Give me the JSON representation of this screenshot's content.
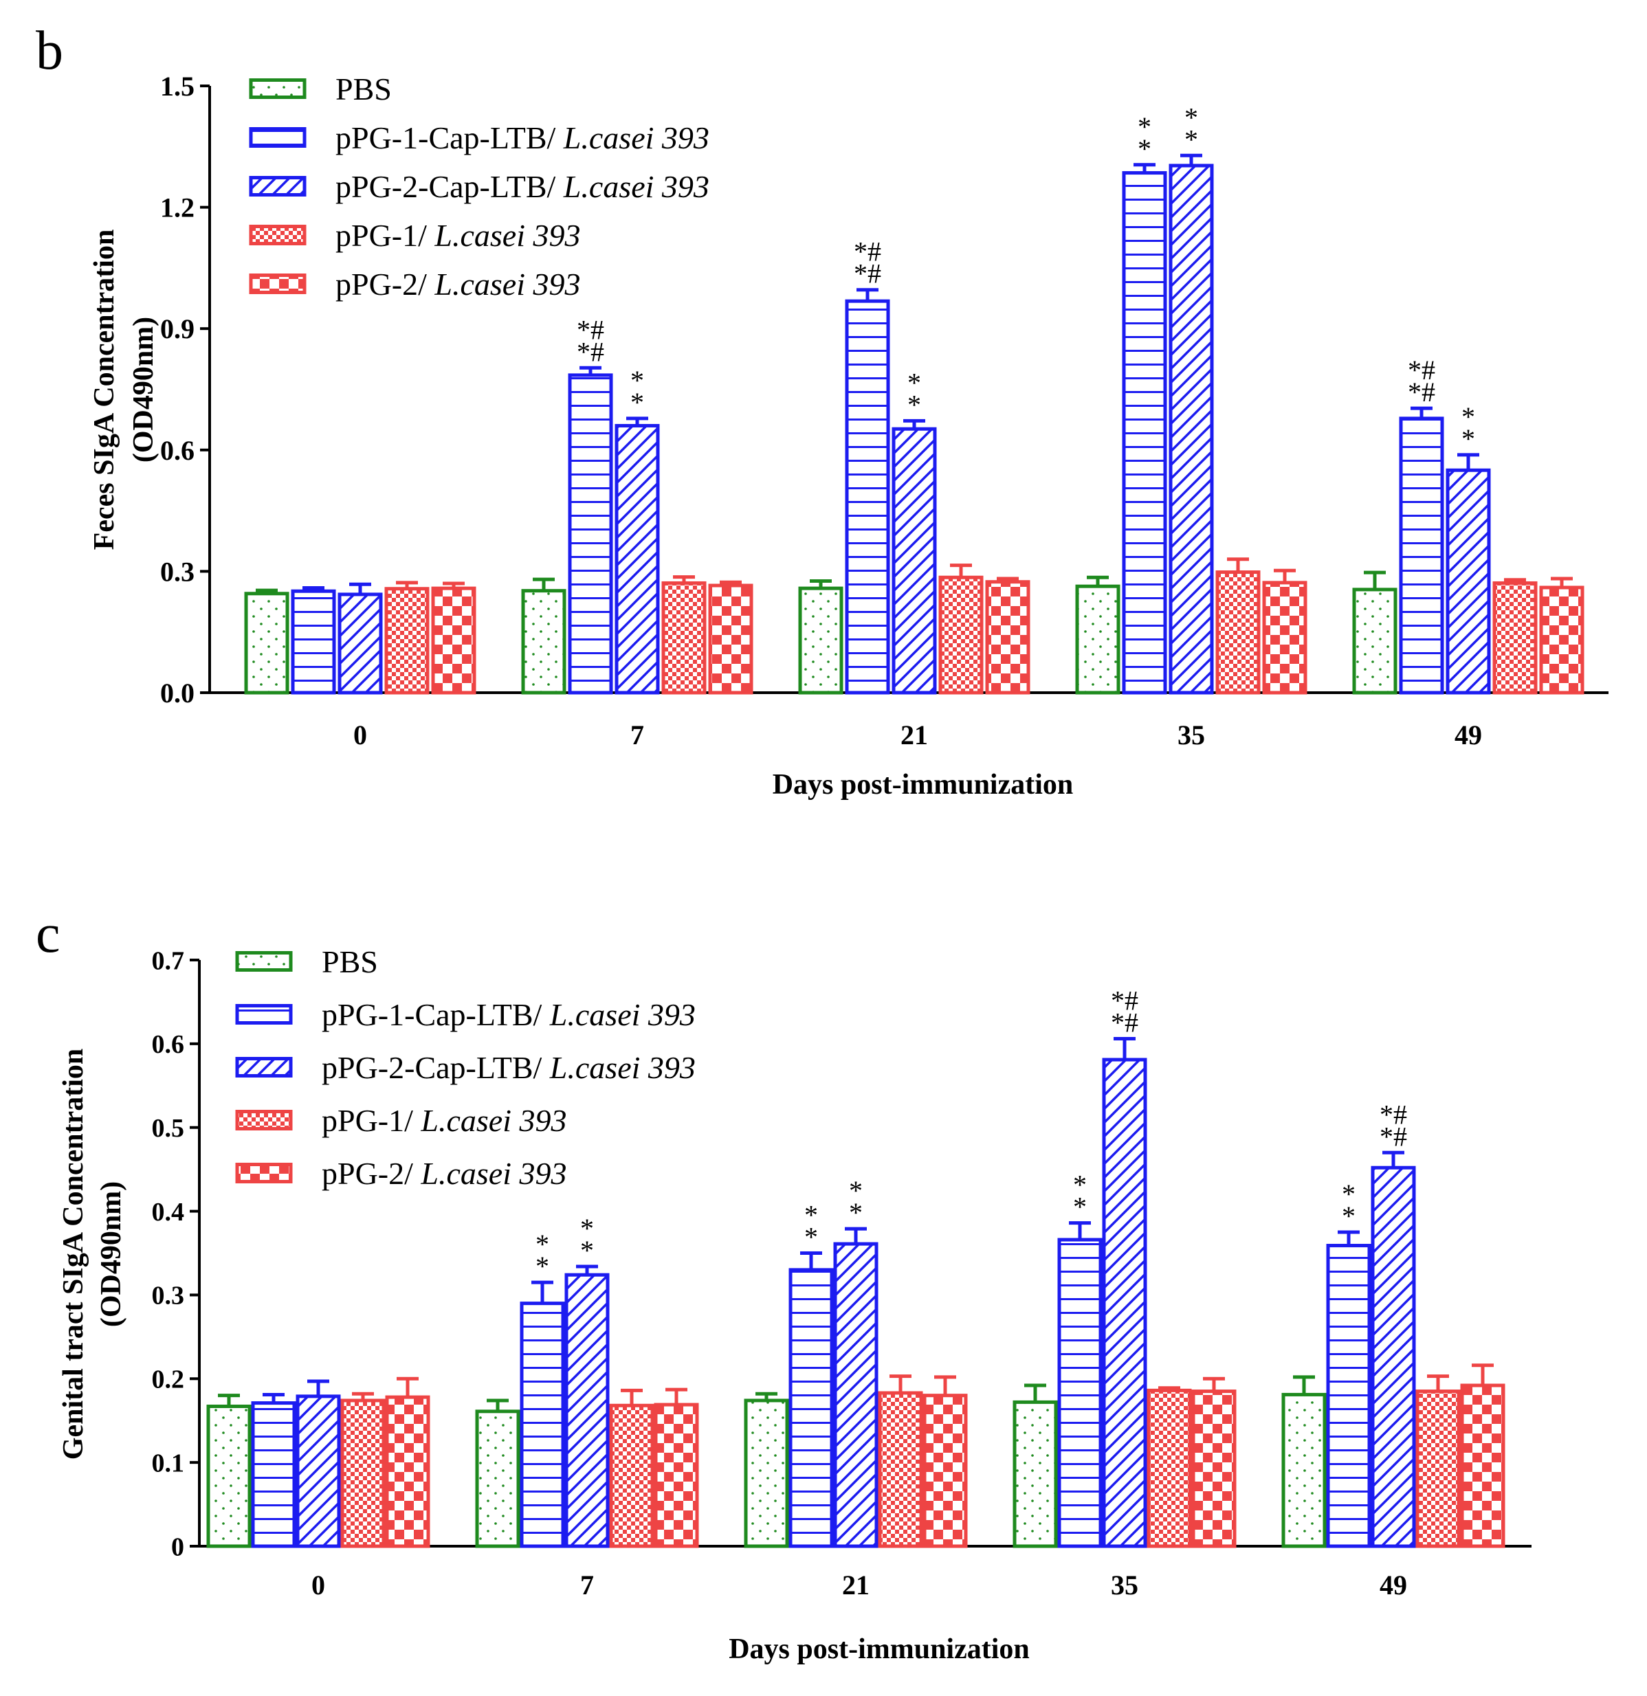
{
  "chart_data": [
    {
      "panel": "b",
      "type": "bar",
      "title": "",
      "xlabel": "Days post-immunization",
      "ylabel": "Feces SIgA Concentration (OD490nm)",
      "ylabel_lines": [
        "Feces SIgA Concentration",
        "(OD490nm)"
      ],
      "ylim": [
        0,
        1.5
      ],
      "yticks": [
        0.0,
        0.3,
        0.6,
        0.9,
        1.2,
        1.5
      ],
      "ytick_labels": [
        "0.0",
        "0.3",
        "0.6",
        "0.9",
        "1.2",
        "1.5"
      ],
      "categories": [
        "0",
        "7",
        "21",
        "35",
        "49"
      ],
      "legend_position": "top-left",
      "series": [
        {
          "name": "PBS",
          "prefix": "PBS",
          "italic": "",
          "pattern": "dots",
          "color": "#1e8a1e",
          "values": [
            0.245,
            0.252,
            0.258,
            0.263,
            0.255
          ],
          "errors": [
            0.008,
            0.028,
            0.018,
            0.022,
            0.042
          ],
          "annotations": [
            "",
            "",
            "",
            "",
            ""
          ]
        },
        {
          "name": "pPG-1-Cap-LTB/ L.casei 393",
          "prefix": "pPG-1-Cap-LTB/ ",
          "italic": "L.casei 393",
          "pattern": "hlines",
          "color": "#1c1cf0",
          "values": [
            0.251,
            0.785,
            0.968,
            1.285,
            0.678
          ],
          "errors": [
            0.008,
            0.018,
            0.028,
            0.02,
            0.025
          ],
          "annotations": [
            "",
            "**##",
            "**##",
            "**",
            "**##"
          ]
        },
        {
          "name": "pPG-2-Cap-LTB/ L.casei 393",
          "prefix": "pPG-2-Cap-LTB/ ",
          "italic": "L.casei 393",
          "pattern": "diag",
          "color": "#1c1cf0",
          "values": [
            0.243,
            0.66,
            0.652,
            1.303,
            0.55
          ],
          "errors": [
            0.025,
            0.018,
            0.02,
            0.025,
            0.038
          ],
          "annotations": [
            "",
            "**",
            "**",
            "**",
            "**"
          ]
        },
        {
          "name": "pPG-1/ L.casei 393",
          "prefix": "pPG-1/ ",
          "italic": "L.casei 393",
          "pattern": "finecheck",
          "color": "#ee4444",
          "values": [
            0.257,
            0.271,
            0.285,
            0.298,
            0.271
          ],
          "errors": [
            0.015,
            0.015,
            0.03,
            0.032,
            0.008
          ],
          "annotations": [
            "",
            "",
            "",
            "",
            ""
          ]
        },
        {
          "name": "pPG-2/ L.casei 393",
          "prefix": "pPG-2/ ",
          "italic": "L.casei 393",
          "pattern": "check",
          "color": "#ee4444",
          "values": [
            0.258,
            0.265,
            0.274,
            0.272,
            0.26
          ],
          "errors": [
            0.012,
            0.008,
            0.008,
            0.03,
            0.022
          ],
          "annotations": [
            "",
            "",
            "",
            "",
            ""
          ]
        }
      ]
    },
    {
      "panel": "c",
      "type": "bar",
      "title": "",
      "xlabel": "Days post-immunization",
      "ylabel": "Genital tract SIgA Concentration (OD490nm)",
      "ylabel_lines": [
        "Genital tract SIgA Concentration",
        "(OD490nm)"
      ],
      "ylim": [
        0,
        0.7
      ],
      "yticks": [
        0,
        0.1,
        0.2,
        0.3,
        0.4,
        0.5,
        0.6,
        0.7
      ],
      "ytick_labels": [
        "0",
        "0.1",
        "0.2",
        "0.3",
        "0.4",
        "0.5",
        "0.6",
        "0.7"
      ],
      "categories": [
        "0",
        "7",
        "21",
        "35",
        "49"
      ],
      "legend_position": "top-left",
      "series": [
        {
          "name": "PBS",
          "prefix": "PBS",
          "italic": "",
          "pattern": "dots",
          "color": "#1e8a1e",
          "values": [
            0.167,
            0.161,
            0.174,
            0.172,
            0.181
          ],
          "errors": [
            0.013,
            0.013,
            0.008,
            0.02,
            0.021
          ],
          "annotations": [
            "",
            "",
            "",
            "",
            ""
          ]
        },
        {
          "name": "pPG-1-Cap-LTB/ L.casei 393",
          "prefix": "pPG-1-Cap-LTB/ ",
          "italic": "L.casei 393",
          "pattern": "hlines",
          "color": "#1c1cf0",
          "values": [
            0.171,
            0.29,
            0.33,
            0.366,
            0.359
          ],
          "errors": [
            0.01,
            0.025,
            0.02,
            0.02,
            0.016
          ],
          "annotations": [
            "",
            "**",
            "**",
            "**",
            "**"
          ]
        },
        {
          "name": "pPG-2-Cap-LTB/ L.casei 393",
          "prefix": "pPG-2-Cap-LTB/ ",
          "italic": "L.casei 393",
          "pattern": "diag",
          "color": "#1c1cf0",
          "values": [
            0.179,
            0.324,
            0.361,
            0.581,
            0.452
          ],
          "errors": [
            0.018,
            0.01,
            0.018,
            0.025,
            0.018
          ],
          "annotations": [
            "",
            "**",
            "**",
            "**##",
            "**##"
          ]
        },
        {
          "name": "pPG-1/ L.casei 393",
          "prefix": "pPG-1/ ",
          "italic": "L.casei 393",
          "pattern": "finecheck",
          "color": "#ee4444",
          "values": [
            0.174,
            0.168,
            0.183,
            0.186,
            0.185
          ],
          "errors": [
            0.008,
            0.018,
            0.02,
            0.003,
            0.018
          ],
          "annotations": [
            "",
            "",
            "",
            "",
            ""
          ]
        },
        {
          "name": "pPG-2/ L.casei 393",
          "prefix": "pPG-2/ ",
          "italic": "L.casei 393",
          "pattern": "check",
          "color": "#ee4444",
          "values": [
            0.178,
            0.169,
            0.18,
            0.185,
            0.192
          ],
          "errors": [
            0.022,
            0.018,
            0.022,
            0.015,
            0.024
          ],
          "annotations": [
            "",
            "",
            "",
            "",
            ""
          ]
        }
      ]
    }
  ]
}
